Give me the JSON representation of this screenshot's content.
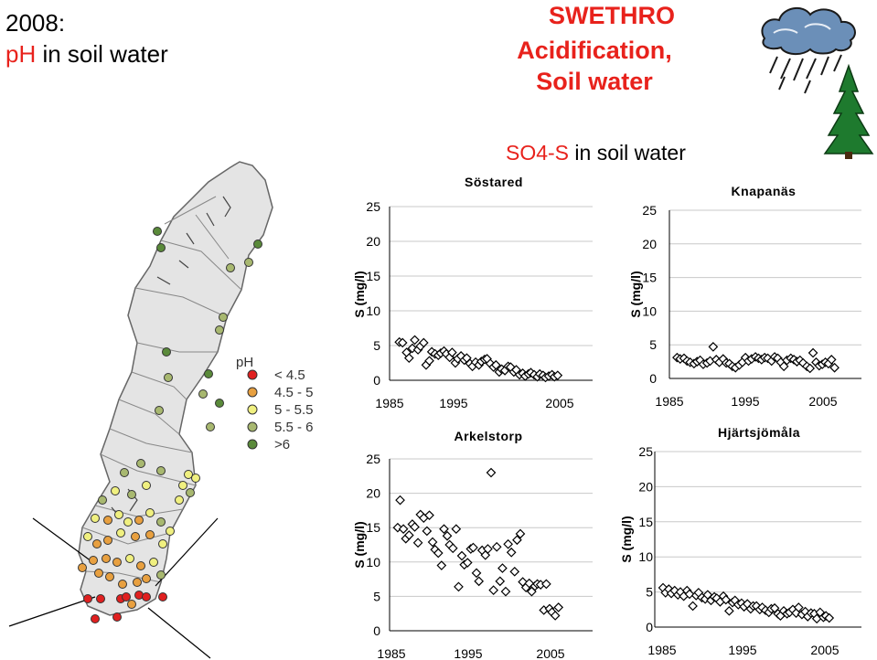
{
  "slide": {
    "title_line1": "2008:",
    "title_ph": "pH",
    "title_rest": " in soil water",
    "brand": "SWETHRO",
    "subtitle_line1": "Acidification,",
    "subtitle_line2": "Soil water",
    "section_prefix": "SO4-S",
    "section_rest": " in soil water"
  },
  "legend": {
    "title": "pH",
    "items": [
      {
        "label": "< 4.5",
        "color": "#e02020"
      },
      {
        "label": "4.5 - 5",
        "color": "#e8a040"
      },
      {
        "label": "5 - 5.5",
        "color": "#f0f080"
      },
      {
        "label": "5.5 - 6",
        "color": "#a8b870"
      },
      {
        "label": ">6",
        "color": "#5a8a3a"
      }
    ]
  },
  "chart_data": [
    {
      "type": "scatter",
      "title": "Söstared",
      "ylabel": "S (mg/l)",
      "xlabel": "",
      "xticks": [
        "1985",
        "1995",
        "2005"
      ],
      "yticks": [
        0,
        5,
        10,
        15,
        20,
        25
      ],
      "xlim": [
        1985,
        2010
      ],
      "ylim": [
        0,
        25
      ],
      "grid": true,
      "x": [
        1986.2,
        1986.6,
        1987.1,
        1987.4,
        1987.8,
        1988.1,
        1988.5,
        1988.8,
        1989.2,
        1989.5,
        1989.9,
        1990.2,
        1990.6,
        1991.0,
        1991.3,
        1991.7,
        1992.0,
        1992.4,
        1992.7,
        1993.1,
        1993.4,
        1993.8,
        1994.2,
        1994.5,
        1994.9,
        1995.2,
        1995.6,
        1996.0,
        1996.3,
        1996.7,
        1997.0,
        1997.4,
        1997.8,
        1998.1,
        1998.5,
        1998.8,
        1999.2,
        1999.6,
        1999.9,
        2000.3,
        2000.6,
        2001.0,
        2001.4,
        2001.7,
        2002.1,
        2002.4,
        2002.8,
        2003.2,
        2003.5,
        2003.9,
        2004.2,
        2004.6,
        2005.0,
        2005.3,
        2005.7
      ],
      "y": [
        5.5,
        5.4,
        4.0,
        3.2,
        4.6,
        5.8,
        4.4,
        4.9,
        5.4,
        2.2,
        2.8,
        4.1,
        3.8,
        3.6,
        3.9,
        4.2,
        3.8,
        3.3,
        4.0,
        2.5,
        3.1,
        3.5,
        2.9,
        3.2,
        2.4,
        2.0,
        2.6,
        2.2,
        2.7,
        3.0,
        3.1,
        2.4,
        1.9,
        2.2,
        1.2,
        1.6,
        1.4,
        2.0,
        1.9,
        1.2,
        1.5,
        0.8,
        1.0,
        0.6,
        0.9,
        1.1,
        0.8,
        0.5,
        0.9,
        0.7,
        0.4,
        0.6,
        0.8,
        0.5,
        0.7
      ]
    },
    {
      "type": "scatter",
      "title": "Knapanäs",
      "ylabel": "S (mg/l)",
      "xlabel": "",
      "xticks": [
        "1985",
        "1995",
        "2005"
      ],
      "yticks": [
        0,
        5,
        10,
        15,
        20,
        25
      ],
      "xlim": [
        1985,
        2010
      ],
      "ylim": [
        0,
        25
      ],
      "grid": true,
      "x": [
        1986.0,
        1986.4,
        1986.9,
        1987.3,
        1987.7,
        1988.2,
        1988.6,
        1989.0,
        1989.4,
        1989.9,
        1990.3,
        1990.7,
        1991.1,
        1991.5,
        1992.0,
        1992.4,
        1992.8,
        1993.2,
        1993.6,
        1994.1,
        1994.5,
        1994.9,
        1995.3,
        1995.7,
        1996.2,
        1996.6,
        1997.0,
        1997.4,
        1997.8,
        1998.3,
        1998.7,
        1999.1,
        1999.5,
        1999.9,
        2000.3,
        2000.8,
        2001.2,
        2001.6,
        2002.0,
        2002.4,
        2002.9,
        2003.3,
        2003.7,
        2004.1,
        2004.5,
        2004.9,
        2005.3,
        2005.7,
        2006.1,
        2006.5
      ],
      "y": [
        3.1,
        2.9,
        3.0,
        2.6,
        2.4,
        2.2,
        2.5,
        2.7,
        2.1,
        2.3,
        2.6,
        4.7,
        2.8,
        2.4,
        2.9,
        2.3,
        2.2,
        1.8,
        1.6,
        2.0,
        2.4,
        3.1,
        2.6,
        2.9,
        3.2,
        3.0,
        2.8,
        3.1,
        3.0,
        2.6,
        3.2,
        3.0,
        2.4,
        1.8,
        2.7,
        3.0,
        2.8,
        2.5,
        2.7,
        2.3,
        1.8,
        1.5,
        3.8,
        2.4,
        1.9,
        2.1,
        2.4,
        2.2,
        2.8,
        1.6
      ]
    },
    {
      "type": "scatter",
      "title": "Arkelstorp",
      "ylabel": "S (mg/l)",
      "xlabel": "",
      "xticks": [
        "1985",
        "1995",
        "2005"
      ],
      "yticks": [
        0,
        5,
        10,
        15,
        20,
        25
      ],
      "xlim": [
        1985,
        2010
      ],
      "ylim": [
        0,
        25
      ],
      "grid": true,
      "x": [
        1986.0,
        1986.3,
        1986.7,
        1987.0,
        1987.4,
        1987.8,
        1988.1,
        1988.5,
        1988.8,
        1989.2,
        1989.6,
        1989.9,
        1990.3,
        1990.6,
        1991.0,
        1991.4,
        1991.7,
        1992.1,
        1992.4,
        1992.8,
        1993.2,
        1993.5,
        1993.9,
        1994.2,
        1994.6,
        1995.0,
        1995.3,
        1995.7,
        1996.0,
        1996.4,
        1996.8,
        1997.1,
        1997.5,
        1997.8,
        1998.2,
        1998.6,
        1998.9,
        1999.3,
        1999.6,
        2000.0,
        2000.4,
        2000.7,
        2001.1,
        2001.4,
        2001.8,
        2002.2,
        2002.5,
        2002.9,
        2003.2,
        2003.6,
        2004.0,
        2004.3,
        2004.7,
        2005.0,
        2005.4,
        2005.8
      ],
      "y": [
        15.0,
        19.0,
        14.8,
        13.4,
        13.9,
        15.5,
        15.1,
        12.8,
        16.9,
        16.4,
        14.5,
        16.8,
        12.9,
        11.8,
        11.3,
        9.5,
        14.8,
        13.8,
        12.5,
        12.0,
        14.8,
        6.4,
        10.9,
        9.6,
        9.9,
        11.9,
        12.1,
        8.4,
        7.2,
        11.7,
        11.0,
        11.9,
        23.0,
        5.9,
        12.2,
        7.2,
        9.1,
        5.7,
        12.6,
        11.4,
        8.6,
        13.2,
        14.1,
        7.1,
        6.3,
        6.9,
        5.7,
        6.5,
        6.8,
        6.7,
        3.0,
        6.8,
        3.2,
        2.7,
        2.2,
        3.4
      ]
    },
    {
      "type": "scatter",
      "title": "Hjärtsjömåla",
      "ylabel": "S (mg/l)",
      "xlabel": "",
      "xticks": [
        "1985",
        "1995",
        "2005"
      ],
      "yticks": [
        0,
        5,
        10,
        15,
        20,
        25
      ],
      "xlim": [
        1985,
        2010
      ],
      "ylim": [
        0,
        25
      ],
      "grid": true,
      "x": [
        1986.0,
        1986.3,
        1986.7,
        1987.0,
        1987.4,
        1987.8,
        1988.1,
        1988.5,
        1988.9,
        1989.2,
        1989.6,
        1990.0,
        1990.3,
        1990.7,
        1991.1,
        1991.4,
        1991.8,
        1992.2,
        1992.5,
        1992.9,
        1993.3,
        1993.6,
        1994.0,
        1994.4,
        1994.7,
        1995.1,
        1995.5,
        1995.8,
        1996.2,
        1996.6,
        1996.9,
        1997.3,
        1997.7,
        1998.0,
        1998.4,
        1998.8,
        1999.1,
        1999.5,
        1999.9,
        2000.2,
        2000.6,
        2001.0,
        2001.3,
        2001.7,
        2002.1,
        2002.4,
        2002.8,
        2003.2,
        2003.5,
        2003.9,
        2004.3,
        2004.6,
        2005.0,
        2005.4,
        2005.7,
        2006.1
      ],
      "y": [
        5.6,
        4.9,
        5.4,
        4.8,
        5.2,
        4.6,
        5.0,
        4.4,
        5.2,
        4.7,
        3.0,
        4.5,
        4.9,
        4.2,
        4.0,
        4.6,
        3.8,
        4.3,
        4.1,
        3.6,
        4.4,
        3.9,
        2.3,
        3.5,
        3.8,
        3.2,
        3.4,
        2.9,
        3.3,
        2.6,
        3.0,
        3.0,
        2.5,
        2.8,
        2.4,
        2.1,
        2.6,
        2.7,
        1.9,
        1.6,
        2.3,
        1.9,
        2.1,
        2.5,
        2.0,
        2.8,
        1.8,
        2.2,
        1.5,
        2.0,
        1.9,
        1.2,
        2.1,
        1.4,
        1.6,
        1.3
      ]
    }
  ]
}
